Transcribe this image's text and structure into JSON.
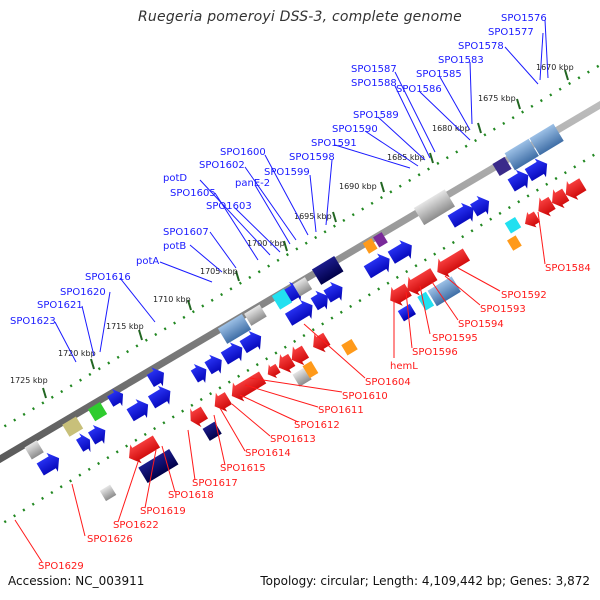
{
  "title": "Ruegeria pomeroyi DSS-3, complete genome",
  "accession_label": "Accession: NC_003911",
  "summary": "Topology: circular; Length: 4,109,442 bp; Genes: 3,872",
  "colors": {
    "forward": "#1a1aff",
    "reverse": "#ff1a1a",
    "backbone": "#777777",
    "tick": "#228822"
  },
  "kbp_ticks": [
    "1670 kbp",
    "1675 kbp",
    "1680 kbp",
    "1685 kbp",
    "1690 kbp",
    "1695 kbp",
    "1700 kbp",
    "1705 kbp",
    "1710 kbp",
    "1715 kbp",
    "1720 kbp",
    "1725 kbp"
  ],
  "forward_labels": [
    "SPO1576",
    "SPO1577",
    "SPO1578",
    "SPO1583",
    "SPO1585",
    "SPO1586",
    "SPO1587",
    "SPO1588",
    "SPO1589",
    "SPO1590",
    "SPO1591",
    "SPO1598",
    "SPO1599",
    "SPO1600",
    "SPO1602",
    "panE-2",
    "potD",
    "SPO1605",
    "SPO1603",
    "SPO1607",
    "potB",
    "potA",
    "SPO1616",
    "SPO1620",
    "SPO1621",
    "SPO1623"
  ],
  "reverse_labels": [
    "SPO1584",
    "SPO1592",
    "SPO1593",
    "SPO1594",
    "SPO1595",
    "SPO1596",
    "hemL",
    "SPO1604",
    "SPO1610",
    "SPO1611",
    "SPO1612",
    "SPO1613",
    "SPO1614",
    "SPO1615",
    "SPO1617",
    "SPO1618",
    "SPO1619",
    "SPO1622",
    "SPO1626",
    "SPO1629"
  ]
}
